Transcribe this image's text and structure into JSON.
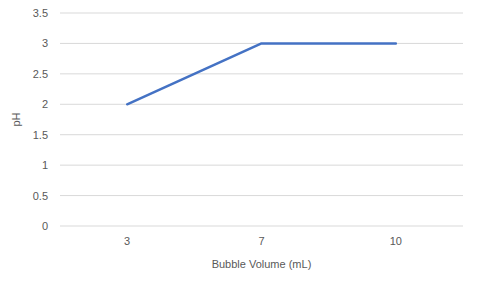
{
  "chart_data": {
    "type": "line",
    "x_label": "Bubble Volume (mL)",
    "y_label": "pH",
    "categories": [
      "3",
      "7",
      "10"
    ],
    "values": [
      2,
      3,
      3
    ],
    "color": "#4472c4",
    "ylim": [
      0,
      3.5
    ],
    "yticks": [
      0,
      0.5,
      1,
      1.5,
      2,
      2.5,
      3,
      3.5
    ],
    "grid": true
  }
}
